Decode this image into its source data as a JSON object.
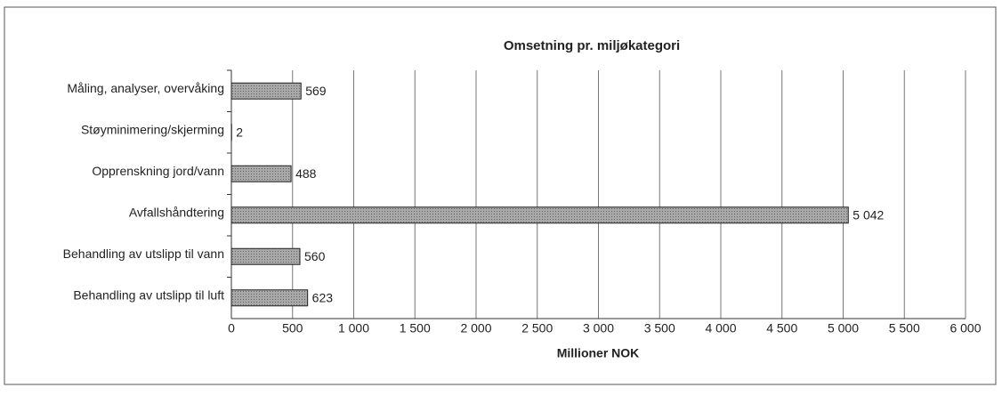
{
  "chart_data": {
    "type": "bar",
    "orientation": "horizontal",
    "title": "Omsetning pr. miljøkategori",
    "x_label": "Millioner NOK",
    "categories": [
      "Måling, analyser, overvåking",
      "Støyminimering/skjerming",
      "Opprenskning jord/vann",
      "Avfallshåndtering",
      "Behandling av utslipp til vann",
      "Behandling av utslipp til luft"
    ],
    "values": [
      569,
      2,
      488,
      5042,
      560,
      623
    ],
    "value_labels": [
      "569",
      "2",
      "488",
      "5 042",
      "560",
      "623"
    ],
    "color": "#9a9a9a",
    "xlim": [
      0,
      6000
    ],
    "xticks": [
      0,
      500,
      {
        "value": 1000,
        "label": "1 000"
      },
      {
        "value": 1500,
        "label": "1 500"
      },
      {
        "value": 2000,
        "label": "2 000"
      },
      {
        "value": 2500,
        "label": "2 500"
      },
      {
        "value": 3000,
        "label": "3 000"
      },
      {
        "value": 3500,
        "label": "3 500"
      },
      {
        "value": 4000,
        "label": "4 000"
      },
      {
        "value": 4500,
        "label": "4 500"
      },
      {
        "value": 5000,
        "label": "5 000"
      },
      {
        "value": 5500,
        "label": "5 500"
      },
      {
        "value": 6000,
        "label": "6 000"
      }
    ],
    "grid": true
  }
}
